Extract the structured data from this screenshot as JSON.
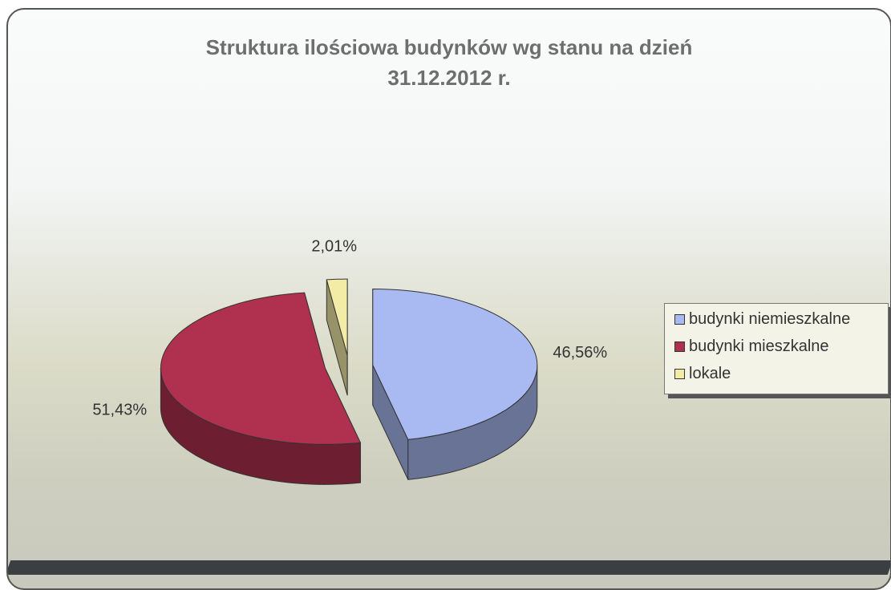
{
  "chart_data": {
    "type": "pie",
    "title": "Struktura ilościowa budynków wg stanu na dzień 31.12.2012 r.",
    "categories": [
      "budynki niemieszkalne",
      "budynki mieszkalne",
      "lokale"
    ],
    "values": [
      46.56,
      51.43,
      2.01
    ],
    "value_labels": [
      "46,56%",
      "51,43%",
      "2,01%"
    ],
    "colors": [
      "#a9b9f2",
      "#b0304f",
      "#f3eca6"
    ],
    "legend": "right"
  }
}
